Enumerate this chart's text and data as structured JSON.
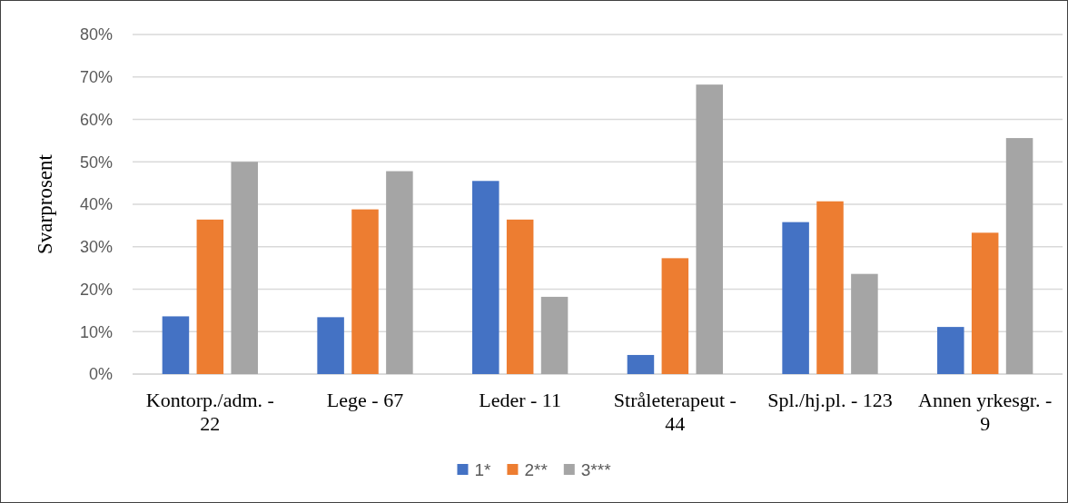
{
  "chart_data": {
    "type": "bar",
    "categories": [
      "Kontorp./adm. - 22",
      "Lege - 67",
      "Leder - 11",
      "Stråleterapeut - 44",
      "Spl./hj.pl. - 123",
      "Annen yrkesgr. - 9"
    ],
    "series": [
      {
        "name": "1*",
        "color": "#4472c4",
        "values": [
          13.6,
          13.4,
          45.5,
          4.5,
          35.8,
          11.1
        ]
      },
      {
        "name": "2**",
        "color": "#ed7d31",
        "values": [
          36.4,
          38.8,
          36.4,
          27.3,
          40.7,
          33.3
        ]
      },
      {
        "name": "3***",
        "color": "#a5a5a5",
        "values": [
          50.0,
          47.8,
          18.2,
          68.2,
          23.6,
          55.6
        ]
      }
    ],
    "ylabel": "Svarprosent",
    "ylim": [
      0,
      80
    ],
    "yticks": [
      {
        "value": 0,
        "label": "0%"
      },
      {
        "value": 10,
        "label": "10%"
      },
      {
        "value": 20,
        "label": "20%"
      },
      {
        "value": 30,
        "label": "30%"
      },
      {
        "value": 40,
        "label": "40%"
      },
      {
        "value": 50,
        "label": "50%"
      },
      {
        "value": 60,
        "label": "60%"
      },
      {
        "value": 70,
        "label": "70%"
      },
      {
        "value": 80,
        "label": "80%"
      }
    ],
    "grid": "y",
    "legend": "bottom"
  }
}
